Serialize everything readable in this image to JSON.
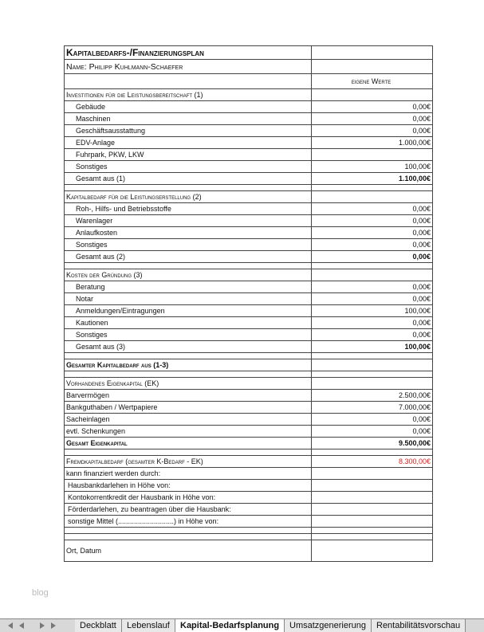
{
  "title": "Kapitalbedarfs-/Finanzierungsplan",
  "name": "Name: Philipp Kuhlmann-Schaefer",
  "column_header": "eigene Werte",
  "sections": [
    {
      "heading": "Investitionen für die Leistungsbereitschaft (1)",
      "items": [
        {
          "label": "Gebäude",
          "value": "0,00€"
        },
        {
          "label": "Maschinen",
          "value": "0,00€"
        },
        {
          "label": "Geschäftsausstattung",
          "value": "0,00€"
        },
        {
          "label": "EDV-Anlage",
          "value": "1.000,00€"
        },
        {
          "label": "Fuhrpark, PKW, LKW"
        },
        {
          "label": "Sonstiges",
          "value": "100,00€"
        }
      ],
      "total": {
        "label": "Gesamt aus (1)",
        "value": "1.100,00€"
      }
    },
    {
      "heading": "Kapitalbedarf für die Leistungserstellung (2)",
      "items": [
        {
          "label": "Roh-, Hilfs- und Betriebsstoffe",
          "value": "0,00€"
        },
        {
          "label": "Warenlager",
          "value": "0,00€"
        },
        {
          "label": "Anlaufkosten",
          "value": "0,00€"
        },
        {
          "label": "Sonstiges",
          "value": "0,00€"
        }
      ],
      "total": {
        "label": "Gesamt aus (2)",
        "value": "0,00€"
      }
    },
    {
      "heading": "Kosten der Gründung (3)",
      "items": [
        {
          "label": "Beratung",
          "value": "0,00€"
        },
        {
          "label": "Notar",
          "value": "0,00€"
        },
        {
          "label": "Anmeldungen/Eintragungen",
          "value": "100,00€"
        },
        {
          "label": "Kautionen",
          "value": "0,00€"
        },
        {
          "label": "Sonstiges",
          "value": "0,00€"
        }
      ],
      "total": {
        "label": "Gesamt aus (3)",
        "value": "100,00€"
      }
    }
  ],
  "grand_total": {
    "label": "Gesamter Kapitalbedarf aus (1-3)"
  },
  "equity": {
    "heading": "Vorhandenes Eigenkapital (EK)",
    "items": [
      {
        "label": "Barvermögen",
        "value": "2.500,00€"
      },
      {
        "label": "Bankguthaben / Wertpapiere",
        "value": "7.000,00€"
      },
      {
        "label": "Sacheinlagen",
        "value": "0,00€"
      },
      {
        "label": "evtl. Schenkungen",
        "value": "0,00€"
      }
    ],
    "total": {
      "label": "Gesamt Eigenkapital",
      "value": "9.500,00€"
    }
  },
  "debt": {
    "label": "Fremdkapitalbedarf (gesamter K-Bedarf - EK)",
    "value": "8.300,00€",
    "color": "#e0201c"
  },
  "financing": {
    "heading": "kann finanziert werden durch:",
    "items": [
      "Hausbankdarlehen in Höhe von:",
      "Kontokorrentkredit der Hausbank in Höhe von:",
      "Förderdarlehen, zu beantragen über die Hausbank:",
      "sonstige Mittel (............................) in Höhe von:"
    ]
  },
  "footer": "Ort, Datum",
  "watermark": "blog",
  "sheet_tabs": [
    {
      "label": "Deckblatt"
    },
    {
      "label": "Lebenslauf"
    },
    {
      "label": "Kapital-Bedarfsplanung",
      "active": true
    },
    {
      "label": "Umsatzgenerierung"
    },
    {
      "label": "Rentabilitätsvorschau"
    }
  ]
}
